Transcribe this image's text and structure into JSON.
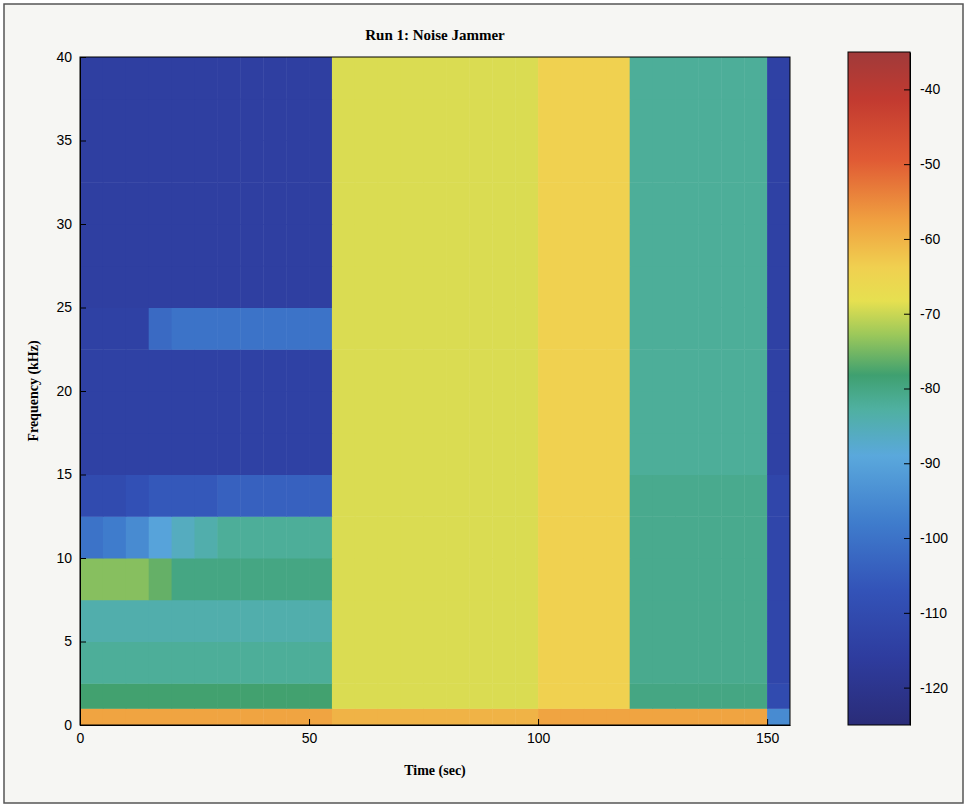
{
  "chart_data": {
    "type": "heatmap",
    "title": "Run 1: Noise Jammer",
    "x_label": "Time (sec)",
    "y_label": "Frequency (kHz)",
    "xlim": [
      0,
      155
    ],
    "xticks": [
      0,
      50,
      100,
      150
    ],
    "ylim": [
      0,
      40
    ],
    "yticks": [
      0,
      5,
      10,
      15,
      20,
      25,
      30,
      35,
      40
    ],
    "x_edges": [
      0,
      5,
      10,
      15,
      20,
      25,
      30,
      35,
      40,
      45,
      50,
      55,
      60,
      65,
      70,
      75,
      80,
      85,
      90,
      95,
      100,
      105,
      110,
      115,
      120,
      125,
      130,
      135,
      140,
      145,
      150,
      155
    ],
    "y_edges": [
      0,
      1,
      2.5,
      5,
      7.5,
      10,
      12.5,
      15,
      17.5,
      20,
      22.5,
      25,
      27.5,
      30,
      32.5,
      35,
      37.5,
      40
    ],
    "cells": [
      [
        -58,
        -58,
        -58,
        -58,
        -58,
        -58,
        -58,
        -58,
        -58,
        -58,
        -58,
        -60,
        -60,
        -60,
        -60,
        -60,
        -60,
        -60,
        -60,
        -60,
        -58,
        -58,
        -58,
        -58,
        -58,
        -58,
        -58,
        -58,
        -58,
        -58,
        -95
      ],
      [
        -78,
        -78,
        -78,
        -78,
        -78,
        -78,
        -78,
        -78,
        -78,
        -78,
        -78,
        -69,
        -69,
        -69,
        -69,
        -69,
        -69,
        -69,
        -69,
        -69,
        -64,
        -64,
        -64,
        -64,
        -80,
        -80,
        -80,
        -80,
        -80,
        -80,
        -110
      ],
      [
        -82,
        -82,
        -82,
        -82,
        -82,
        -82,
        -82,
        -82,
        -82,
        -82,
        -82,
        -69,
        -69,
        -69,
        -69,
        -69,
        -69,
        -69,
        -69,
        -69,
        -64,
        -64,
        -64,
        -64,
        -81,
        -81,
        -81,
        -81,
        -81,
        -81,
        -112
      ],
      [
        -84,
        -84,
        -84,
        -84,
        -84,
        -84,
        -84,
        -84,
        -84,
        -84,
        -84,
        -69,
        -69,
        -69,
        -69,
        -69,
        -69,
        -69,
        -69,
        -69,
        -64,
        -64,
        -64,
        -64,
        -81,
        -81,
        -81,
        -81,
        -81,
        -81,
        -112
      ],
      [
        -74,
        -74,
        -74,
        -76,
        -80,
        -80,
        -80,
        -80,
        -80,
        -80,
        -80,
        -69,
        -69,
        -69,
        -69,
        -69,
        -69,
        -69,
        -69,
        -69,
        -64,
        -64,
        -64,
        -64,
        -81,
        -81,
        -81,
        -81,
        -81,
        -81,
        -112
      ],
      [
        -100,
        -98,
        -95,
        -90,
        -86,
        -84,
        -82,
        -82,
        -82,
        -82,
        -82,
        -69,
        -69,
        -69,
        -69,
        -69,
        -69,
        -69,
        -69,
        -69,
        -64,
        -64,
        -64,
        -64,
        -81,
        -81,
        -81,
        -81,
        -81,
        -81,
        -112
      ],
      [
        -110,
        -110,
        -108,
        -106,
        -106,
        -106,
        -104,
        -104,
        -104,
        -104,
        -104,
        -69,
        -69,
        -69,
        -69,
        -69,
        -69,
        -69,
        -69,
        -69,
        -64,
        -64,
        -64,
        -64,
        -81,
        -81,
        -81,
        -81,
        -81,
        -81,
        -112
      ],
      [
        -114,
        -114,
        -114,
        -114,
        -114,
        -114,
        -114,
        -114,
        -114,
        -114,
        -114,
        -69,
        -69,
        -69,
        -69,
        -69,
        -69,
        -69,
        -69,
        -69,
        -64,
        -64,
        -64,
        -64,
        -82,
        -82,
        -82,
        -82,
        -82,
        -82,
        -114
      ],
      [
        -114,
        -114,
        -114,
        -114,
        -114,
        -114,
        -114,
        -114,
        -114,
        -114,
        -114,
        -69,
        -69,
        -69,
        -69,
        -69,
        -69,
        -69,
        -69,
        -69,
        -64,
        -64,
        -64,
        -64,
        -82,
        -82,
        -82,
        -82,
        -82,
        -82,
        -114
      ],
      [
        -114,
        -114,
        -114,
        -114,
        -114,
        -114,
        -114,
        -114,
        -114,
        -114,
        -114,
        -69,
        -69,
        -69,
        -69,
        -69,
        -69,
        -69,
        -69,
        -69,
        -64,
        -64,
        -64,
        -64,
        -82,
        -82,
        -82,
        -82,
        -82,
        -82,
        -114
      ],
      [
        -114,
        -114,
        -114,
        -102,
        -100,
        -100,
        -100,
        -100,
        -100,
        -100,
        -100,
        -69,
        -69,
        -69,
        -69,
        -69,
        -69,
        -69,
        -69,
        -69,
        -64,
        -64,
        -64,
        -64,
        -82,
        -82,
        -82,
        -82,
        -82,
        -82,
        -114
      ],
      [
        -115,
        -115,
        -115,
        -115,
        -115,
        -115,
        -115,
        -115,
        -115,
        -115,
        -115,
        -69,
        -69,
        -69,
        -69,
        -69,
        -69,
        -69,
        -69,
        -69,
        -64,
        -64,
        -64,
        -64,
        -82,
        -82,
        -82,
        -82,
        -82,
        -82,
        -114
      ],
      [
        -115,
        -115,
        -115,
        -115,
        -115,
        -115,
        -115,
        -115,
        -115,
        -115,
        -115,
        -69,
        -69,
        -69,
        -69,
        -69,
        -69,
        -69,
        -69,
        -69,
        -64,
        -64,
        -64,
        -64,
        -82,
        -82,
        -82,
        -82,
        -82,
        -82,
        -114
      ],
      [
        -115,
        -115,
        -115,
        -115,
        -115,
        -115,
        -115,
        -115,
        -115,
        -115,
        -115,
        -69,
        -69,
        -69,
        -69,
        -69,
        -69,
        -69,
        -69,
        -69,
        -64,
        -64,
        -64,
        -64,
        -82,
        -82,
        -82,
        -82,
        -82,
        -82,
        -114
      ],
      [
        -115,
        -115,
        -115,
        -115,
        -115,
        -115,
        -115,
        -115,
        -115,
        -115,
        -115,
        -69,
        -69,
        -69,
        -69,
        -69,
        -69,
        -69,
        -69,
        -69,
        -64,
        -64,
        -64,
        -64,
        -82,
        -82,
        -82,
        -82,
        -82,
        -82,
        -114
      ],
      [
        -115,
        -115,
        -115,
        -115,
        -115,
        -115,
        -115,
        -115,
        -115,
        -115,
        -115,
        -69,
        -69,
        -69,
        -69,
        -69,
        -69,
        -69,
        -69,
        -69,
        -64,
        -64,
        -64,
        -64,
        -82,
        -82,
        -82,
        -82,
        -82,
        -82,
        -114
      ],
      [
        -115,
        -115,
        -115,
        -115,
        -115,
        -115,
        -115,
        -115,
        -115,
        -115,
        -115,
        -69,
        -69,
        -69,
        -69,
        -69,
        -69,
        -69,
        -69,
        -69,
        -64,
        -64,
        -64,
        -64,
        -82,
        -82,
        -82,
        -82,
        -82,
        -82,
        -114
      ]
    ],
    "colorbar_range": [
      -125,
      -35
    ],
    "colorbar_ticks": [
      -40,
      -50,
      -60,
      -70,
      -80,
      -90,
      -100,
      -110,
      -120
    ]
  }
}
